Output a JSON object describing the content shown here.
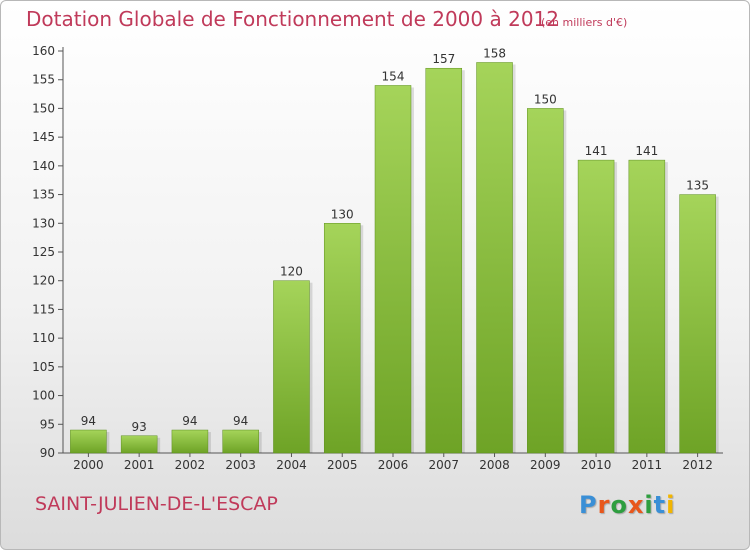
{
  "header": {
    "title": "Dotation Globale de Fonctionnement de 2000 à 2012",
    "unit": "(en milliers d'€)"
  },
  "footer": {
    "commune": "SAINT-JULIEN-DE-L'ESCAP",
    "logo_text": "Proxiti",
    "logo_colors": [
      "#3a8fd6",
      "#e8571c",
      "#2e9e3f",
      "#e8571c",
      "#2e9e3f",
      "#3a8fd6",
      "#f2b500"
    ]
  },
  "colors": {
    "bar_light": "#a5d45a",
    "bar_dark": "#6ea326",
    "accent": "#c03a5a"
  },
  "chart_data": {
    "type": "bar",
    "title": "Dotation Globale de Fonctionnement de 2000 à 2012",
    "subtitle": "(en milliers d'€)",
    "xlabel": "",
    "ylabel": "",
    "categories": [
      "2000",
      "2001",
      "2002",
      "2003",
      "2004",
      "2005",
      "2006",
      "2007",
      "2008",
      "2009",
      "2010",
      "2011",
      "2012"
    ],
    "values": [
      94,
      93,
      94,
      94,
      120,
      130,
      154,
      157,
      158,
      150,
      141,
      141,
      135
    ],
    "ylim": [
      90,
      160
    ],
    "yticks": [
      90,
      95,
      100,
      105,
      110,
      115,
      120,
      125,
      130,
      135,
      140,
      145,
      150,
      155,
      160
    ],
    "grid": false,
    "data_labels": true
  }
}
